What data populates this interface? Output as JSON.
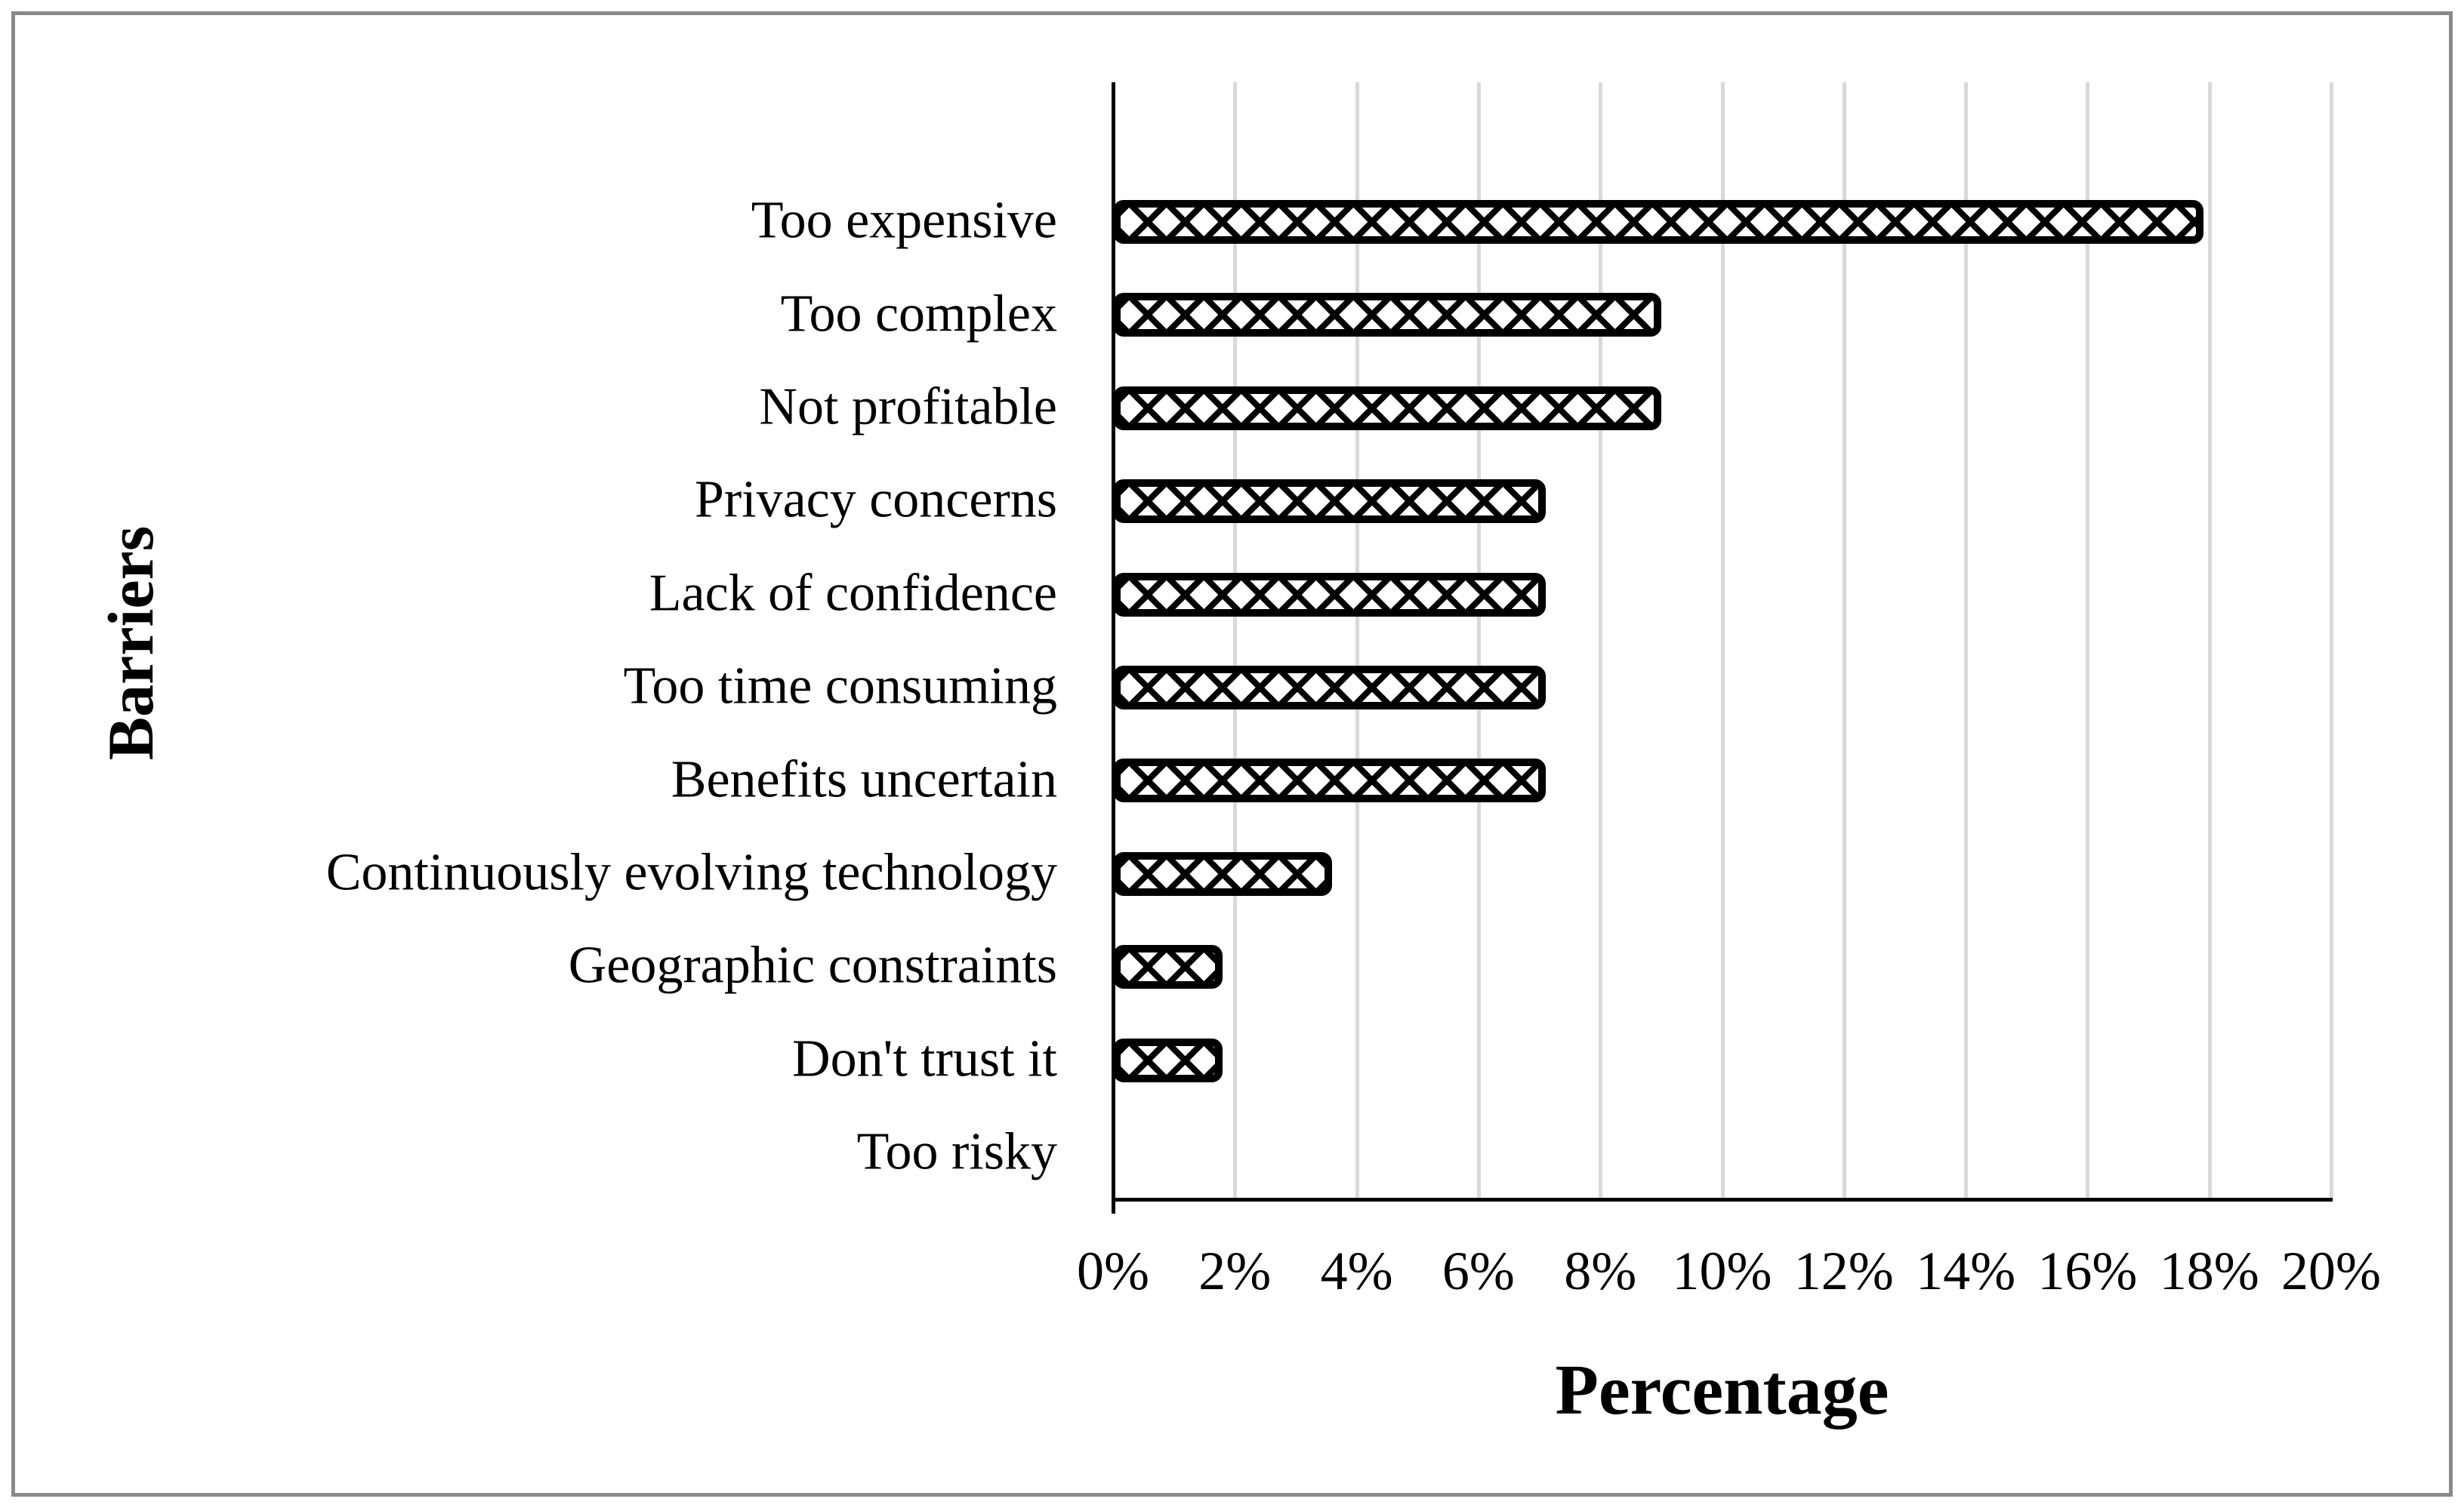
{
  "chart_data": {
    "type": "bar",
    "orientation": "horizontal",
    "categories": [
      "Too expensive",
      "Too complex",
      "Not profitable",
      "Privacy concerns",
      "Lack of confidence",
      "Too time consuming",
      "Benefits uncertain",
      "Continuously evolving technology",
      "Geographic constraints",
      "Don't trust it",
      "Too risky"
    ],
    "values": [
      17.9,
      9.0,
      9.0,
      7.1,
      7.1,
      7.1,
      7.1,
      3.6,
      1.8,
      1.8,
      0
    ],
    "unit": "percent",
    "xlabel": "Percentage",
    "ylabel": "Barriers",
    "xlim": [
      0,
      20
    ],
    "x_ticks": [
      "0%",
      "2%",
      "4%",
      "6%",
      "8%",
      "10%",
      "12%",
      "14%",
      "16%",
      "18%",
      "20%"
    ],
    "grid": "vertical",
    "legend": "none",
    "bar_style": {
      "fill": "#ffffff",
      "stroke": "#000000",
      "pattern": "diagonal-crosshatch"
    }
  },
  "colors": {
    "gridline": "#d9d9d9",
    "axis": "#000000",
    "text": "#000000",
    "figure_border": "#8a8a8a",
    "background": "#ffffff"
  }
}
